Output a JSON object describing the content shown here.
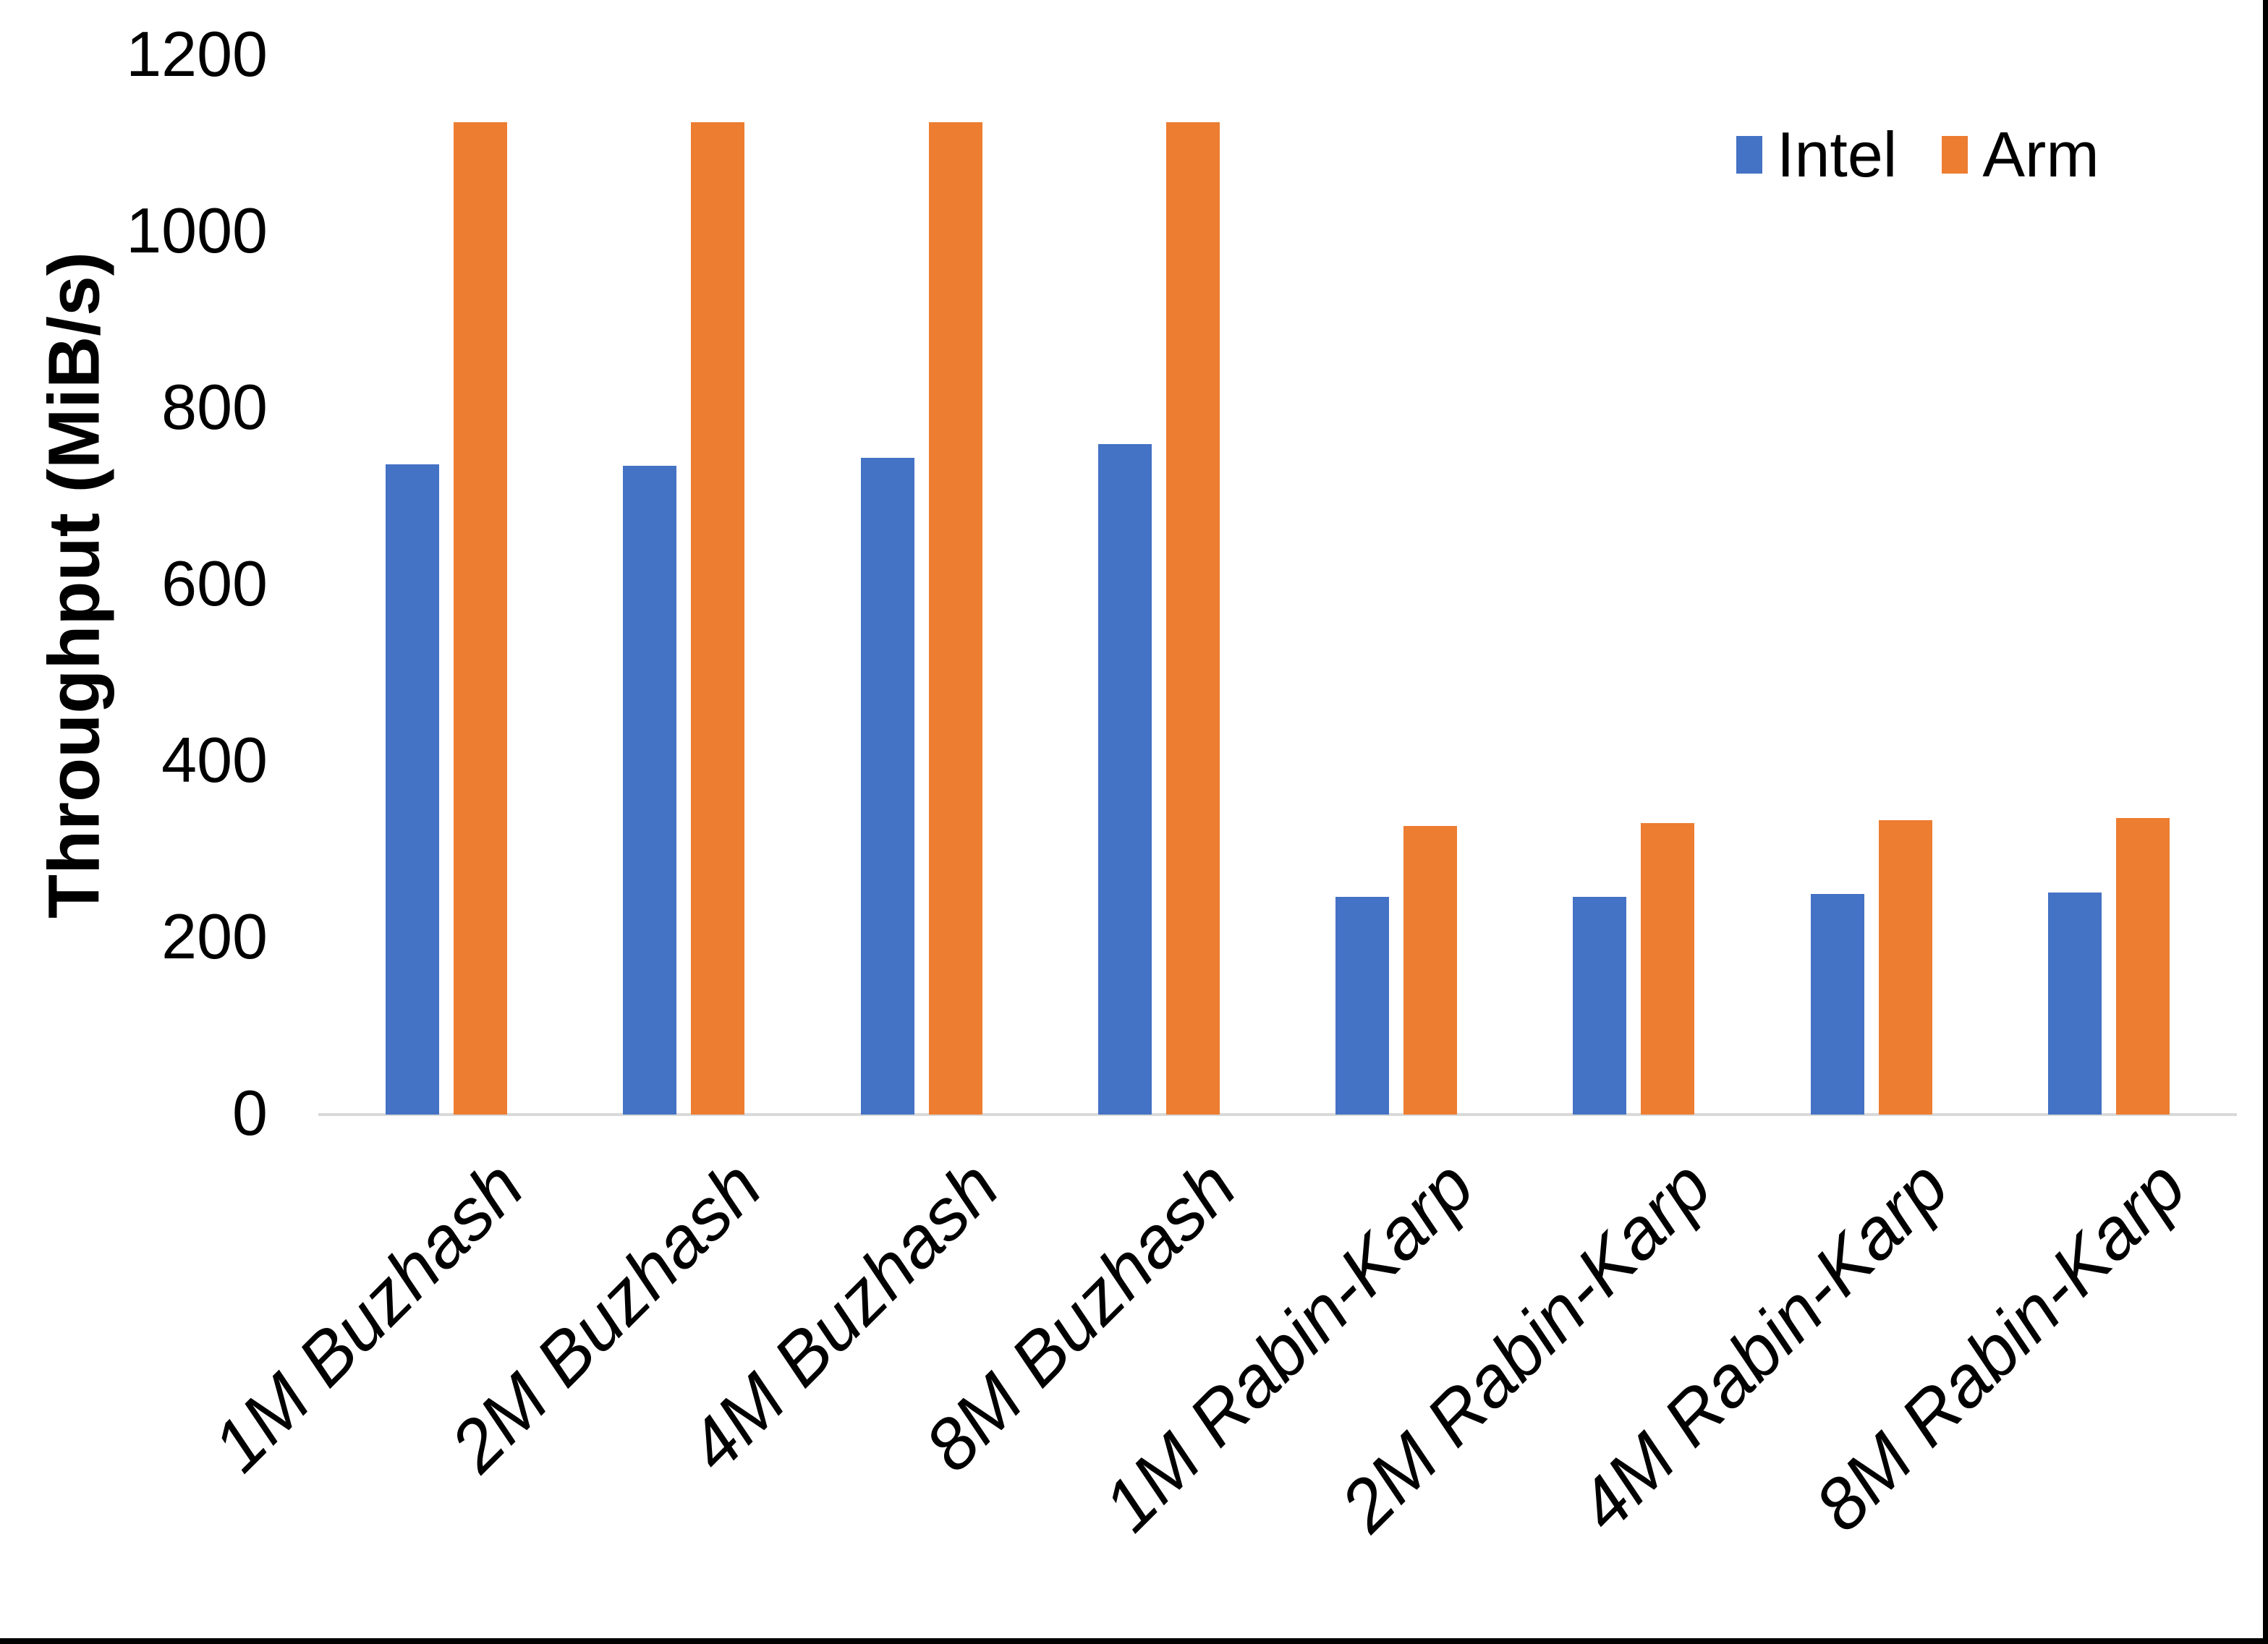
{
  "chart_data": {
    "type": "bar",
    "title": "",
    "categories": [
      "1M Buzhash",
      "2M Buzhash",
      "4M Buzhash",
      "8M Buzhash",
      "1M Rabin-Karp",
      "2M Rabin-Karp",
      "4M Rabin-Karp",
      "8M Rabin-Karp"
    ],
    "series": [
      {
        "name": "Intel",
        "color": "#4472C4",
        "values": [
          737,
          735,
          744,
          760,
          247,
          247,
          250,
          252
        ]
      },
      {
        "name": "Arm",
        "color": "#ED7D31",
        "values": [
          1125,
          1125,
          1125,
          1125,
          327,
          330,
          334,
          336
        ]
      }
    ],
    "xlabel": "",
    "ylabel": "Throughput (MiB/s)",
    "ylim": [
      0,
      1200
    ],
    "yticks": [
      0,
      200,
      400,
      600,
      800,
      1000,
      1200
    ],
    "grid": false,
    "legend_position": "top-right",
    "x_tick_rotation_deg": 45,
    "axis_line_color": "#D9D9D9",
    "text_color": "#000000"
  }
}
